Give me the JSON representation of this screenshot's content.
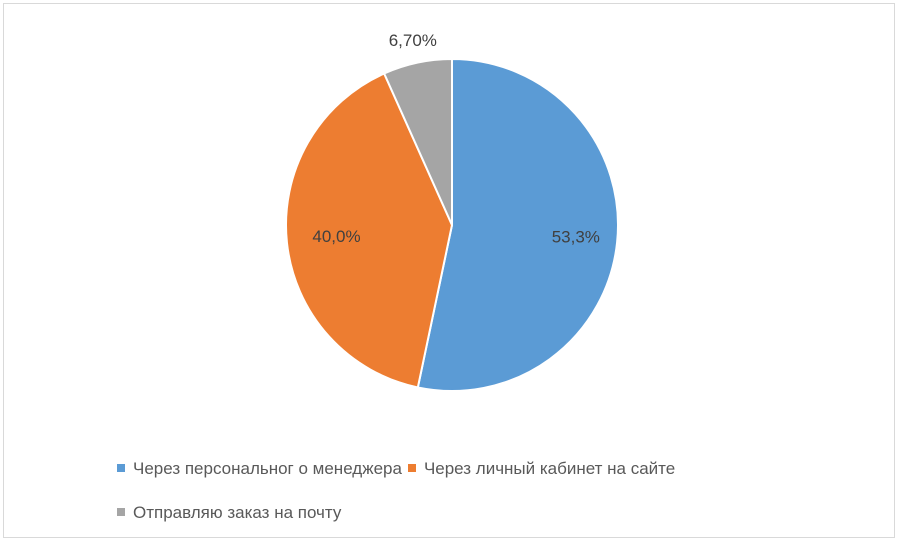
{
  "chart_data": {
    "type": "pie",
    "slices": [
      {
        "label": "Через персональног о менеджера",
        "value": 53.3,
        "display": "53,3%",
        "color": "#5b9bd5"
      },
      {
        "label": "Через личный кабинет на сайте",
        "value": 40.0,
        "display": "40,0%",
        "color": "#ed7d31"
      },
      {
        "label": "Отправляю заказ на почту",
        "value": 6.7,
        "display": "6,70%",
        "color": "#a5a5a5"
      }
    ],
    "start_angle": "12 o'clock",
    "direction": "clockwise",
    "legend_position": "bottom"
  }
}
